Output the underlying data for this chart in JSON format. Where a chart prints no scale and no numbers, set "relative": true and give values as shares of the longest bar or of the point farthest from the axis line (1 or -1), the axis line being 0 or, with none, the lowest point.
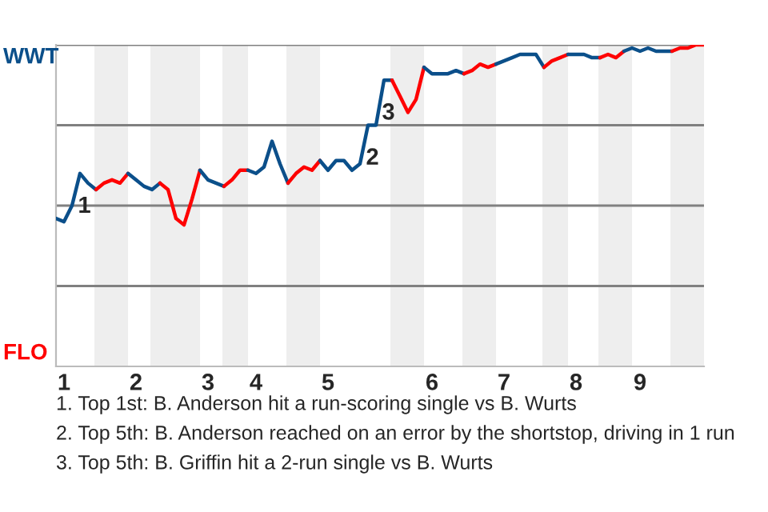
{
  "chart_data": {
    "type": "line",
    "relative": true,
    "grid": "y",
    "categories": [
      null,
      "1",
      null,
      null,
      null,
      null,
      null,
      null,
      null,
      null,
      "2",
      null,
      null,
      null,
      null,
      null,
      null,
      null,
      null,
      "3",
      null,
      null,
      null,
      null,
      null,
      "4",
      null,
      null,
      null,
      null,
      null,
      null,
      null,
      null,
      "5",
      null,
      null,
      null,
      null,
      null,
      null,
      null,
      null,
      null,
      null,
      null,
      null,
      "6",
      null,
      null,
      null,
      null,
      null,
      null,
      null,
      null,
      "7",
      null,
      null,
      null,
      null,
      null,
      null,
      null,
      null,
      "8",
      null,
      null,
      null,
      null,
      null,
      null,
      null,
      "9",
      null,
      null,
      null,
      null,
      null,
      null,
      null,
      null
    ],
    "series": [
      {
        "color": "#0b4f8a",
        "values": [
          0.46,
          0.45,
          0.5,
          0.6,
          0.57,
          0.55,
          null,
          null,
          null,
          null,
          null,
          null,
          null,
          null,
          null,
          null,
          null,
          null,
          null,
          null,
          null,
          null,
          null,
          null,
          null,
          null,
          null,
          null,
          null,
          null,
          null,
          null,
          null,
          null,
          null,
          null,
          null,
          null,
          null,
          null,
          null,
          null,
          null,
          null,
          null,
          null,
          null,
          null,
          null,
          null,
          null,
          null,
          null,
          null,
          null,
          null,
          null,
          null,
          null,
          null,
          null,
          null,
          null,
          null,
          null,
          null,
          null,
          null,
          null,
          null,
          null,
          null,
          null,
          null,
          null,
          null,
          null,
          null,
          null,
          null,
          null,
          null
        ]
      },
      {
        "color": "#ff0000",
        "values": [
          null,
          null,
          null,
          null,
          null,
          0.55,
          0.57,
          0.58,
          0.57,
          0.6,
          null,
          null,
          null,
          null,
          null,
          null,
          null,
          null,
          null,
          null,
          null,
          null,
          null,
          null,
          null,
          null,
          null,
          null,
          null,
          null,
          null,
          null,
          null,
          null,
          null,
          null,
          null,
          null,
          null,
          null,
          null,
          null,
          null,
          null,
          null,
          null,
          null,
          null,
          null,
          null,
          null,
          null,
          null,
          null,
          null,
          null,
          null,
          null,
          null,
          null,
          null,
          null,
          null,
          null,
          null,
          null,
          null,
          null,
          null,
          null,
          null,
          null,
          null,
          null,
          null,
          null,
          null,
          null,
          null,
          null,
          null,
          null
        ]
      },
      {
        "color": "#0b4f8b",
        "values": [
          null,
          null,
          null,
          null,
          null,
          null,
          null,
          null,
          null,
          0.6,
          0.58,
          0.56,
          0.55,
          0.57,
          null,
          null,
          null,
          null,
          null,
          null,
          null,
          null,
          null,
          null,
          null,
          null,
          null,
          null,
          null,
          null,
          null,
          null,
          null,
          null,
          null,
          null,
          null,
          null,
          null,
          null,
          null,
          null,
          null,
          null,
          null,
          null,
          null,
          null,
          null,
          null,
          null,
          null,
          null,
          null,
          null,
          null,
          null,
          null,
          null,
          null,
          null,
          null,
          null,
          null,
          null,
          null,
          null,
          null,
          null,
          null,
          null,
          null,
          null,
          null,
          null,
          null,
          null,
          null,
          null,
          null,
          null,
          null
        ]
      },
      {
        "color": "#fe0000",
        "values": [
          null,
          null,
          null,
          null,
          null,
          null,
          null,
          null,
          null,
          null,
          null,
          null,
          null,
          0.57,
          0.55,
          0.46,
          0.44,
          0.52,
          0.61,
          null,
          null,
          null,
          null,
          null,
          null,
          null,
          null,
          null,
          null,
          null,
          null,
          null,
          null,
          null,
          null,
          null,
          null,
          null,
          null,
          null,
          null,
          null,
          null,
          null,
          null,
          null,
          null,
          null,
          null,
          null,
          null,
          null,
          null,
          null,
          null,
          null,
          null,
          null,
          null,
          null,
          null,
          null,
          null,
          null,
          null,
          null,
          null,
          null,
          null,
          null,
          null,
          null,
          null,
          null,
          null,
          null,
          null,
          null,
          null,
          null,
          null,
          null
        ]
      },
      {
        "color": "#0b508a",
        "values": [
          null,
          null,
          null,
          null,
          null,
          null,
          null,
          null,
          null,
          null,
          null,
          null,
          null,
          null,
          null,
          null,
          null,
          null,
          0.61,
          0.58,
          0.57,
          0.56,
          null,
          null,
          null,
          null,
          null,
          null,
          null,
          null,
          null,
          null,
          null,
          null,
          null,
          null,
          null,
          null,
          null,
          null,
          null,
          null,
          null,
          null,
          null,
          null,
          null,
          null,
          null,
          null,
          null,
          null,
          null,
          null,
          null,
          null,
          null,
          null,
          null,
          null,
          null,
          null,
          null,
          null,
          null,
          null,
          null,
          null,
          null,
          null,
          null,
          null,
          null,
          null,
          null,
          null,
          null,
          null,
          null,
          null,
          null,
          null
        ]
      },
      {
        "color": "#ff0101",
        "values": [
          null,
          null,
          null,
          null,
          null,
          null,
          null,
          null,
          null,
          null,
          null,
          null,
          null,
          null,
          null,
          null,
          null,
          null,
          null,
          null,
          null,
          0.56,
          0.58,
          0.61,
          0.61,
          null,
          null,
          null,
          null,
          null,
          null,
          null,
          null,
          null,
          null,
          null,
          null,
          null,
          null,
          null,
          null,
          null,
          null,
          null,
          null,
          null,
          null,
          null,
          null,
          null,
          null,
          null,
          null,
          null,
          null,
          null,
          null,
          null,
          null,
          null,
          null,
          null,
          null,
          null,
          null,
          null,
          null,
          null,
          null,
          null,
          null,
          null,
          null,
          null,
          null,
          null,
          null,
          null,
          null,
          null,
          null,
          null
        ]
      },
      {
        "color": "#0c4f8a",
        "values": [
          null,
          null,
          null,
          null,
          null,
          null,
          null,
          null,
          null,
          null,
          null,
          null,
          null,
          null,
          null,
          null,
          null,
          null,
          null,
          null,
          null,
          null,
          null,
          null,
          0.61,
          0.6,
          0.62,
          0.7,
          0.63,
          0.57,
          null,
          null,
          null,
          null,
          null,
          null,
          null,
          null,
          null,
          null,
          null,
          null,
          null,
          null,
          null,
          null,
          null,
          null,
          null,
          null,
          null,
          null,
          null,
          null,
          null,
          null,
          null,
          null,
          null,
          null,
          null,
          null,
          null,
          null,
          null,
          null,
          null,
          null,
          null,
          null,
          null,
          null,
          null,
          null,
          null,
          null,
          null,
          null,
          null,
          null,
          null,
          null
        ]
      },
      {
        "color": "#fd0000",
        "values": [
          null,
          null,
          null,
          null,
          null,
          null,
          null,
          null,
          null,
          null,
          null,
          null,
          null,
          null,
          null,
          null,
          null,
          null,
          null,
          null,
          null,
          null,
          null,
          null,
          null,
          null,
          null,
          null,
          null,
          0.57,
          0.6,
          0.62,
          0.61,
          0.64,
          null,
          null,
          null,
          null,
          null,
          null,
          null,
          null,
          null,
          null,
          null,
          null,
          null,
          null,
          null,
          null,
          null,
          null,
          null,
          null,
          null,
          null,
          null,
          null,
          null,
          null,
          null,
          null,
          null,
          null,
          null,
          null,
          null,
          null,
          null,
          null,
          null,
          null,
          null,
          null,
          null,
          null,
          null,
          null,
          null,
          null,
          null,
          null
        ]
      },
      {
        "color": "#0a4f8a",
        "values": [
          null,
          null,
          null,
          null,
          null,
          null,
          null,
          null,
          null,
          null,
          null,
          null,
          null,
          null,
          null,
          null,
          null,
          null,
          null,
          null,
          null,
          null,
          null,
          null,
          null,
          null,
          null,
          null,
          null,
          null,
          null,
          null,
          null,
          0.64,
          0.61,
          0.64,
          0.64,
          0.61,
          0.63,
          0.75,
          0.75,
          0.89,
          0.89,
          null,
          null,
          null,
          null,
          null,
          null,
          null,
          null,
          null,
          null,
          null,
          null,
          null,
          null,
          null,
          null,
          null,
          null,
          null,
          null,
          null,
          null,
          null,
          null,
          null,
          null,
          null,
          null,
          null,
          null,
          null,
          null,
          null,
          null,
          null,
          null,
          null,
          null,
          null
        ]
      },
      {
        "color": "#ff0202",
        "values": [
          null,
          null,
          null,
          null,
          null,
          null,
          null,
          null,
          null,
          null,
          null,
          null,
          null,
          null,
          null,
          null,
          null,
          null,
          null,
          null,
          null,
          null,
          null,
          null,
          null,
          null,
          null,
          null,
          null,
          null,
          null,
          null,
          null,
          null,
          null,
          null,
          null,
          null,
          null,
          null,
          null,
          null,
          0.89,
          0.84,
          0.79,
          0.83,
          0.93,
          null,
          null,
          null,
          null,
          null,
          null,
          null,
          null,
          null,
          null,
          null,
          null,
          null,
          null,
          null,
          null,
          null,
          null,
          null,
          null,
          null,
          null,
          null,
          null,
          null,
          null,
          null,
          null,
          null,
          null,
          null,
          null,
          null,
          null,
          null
        ]
      },
      {
        "color": "#0b4e8a",
        "values": [
          null,
          null,
          null,
          null,
          null,
          null,
          null,
          null,
          null,
          null,
          null,
          null,
          null,
          null,
          null,
          null,
          null,
          null,
          null,
          null,
          null,
          null,
          null,
          null,
          null,
          null,
          null,
          null,
          null,
          null,
          null,
          null,
          null,
          null,
          null,
          null,
          null,
          null,
          null,
          null,
          null,
          null,
          null,
          null,
          null,
          null,
          0.93,
          0.91,
          0.91,
          0.91,
          0.92,
          0.91,
          null,
          null,
          null,
          null,
          null,
          null,
          null,
          null,
          null,
          null,
          null,
          null,
          null,
          null,
          null,
          null,
          null,
          null,
          null,
          null,
          null,
          null,
          null,
          null,
          null,
          null,
          null,
          null,
          null,
          null
        ]
      },
      {
        "color": "#fe0101",
        "values": [
          null,
          null,
          null,
          null,
          null,
          null,
          null,
          null,
          null,
          null,
          null,
          null,
          null,
          null,
          null,
          null,
          null,
          null,
          null,
          null,
          null,
          null,
          null,
          null,
          null,
          null,
          null,
          null,
          null,
          null,
          null,
          null,
          null,
          null,
          null,
          null,
          null,
          null,
          null,
          null,
          null,
          null,
          null,
          null,
          null,
          null,
          null,
          null,
          null,
          null,
          null,
          0.91,
          0.92,
          0.94,
          0.93,
          0.94,
          null,
          null,
          null,
          null,
          null,
          null,
          null,
          null,
          null,
          null,
          null,
          null,
          null,
          null,
          null,
          null,
          null,
          null,
          null,
          null,
          null,
          null,
          null,
          null,
          null,
          null
        ]
      },
      {
        "color": "#0b4f89",
        "values": [
          null,
          null,
          null,
          null,
          null,
          null,
          null,
          null,
          null,
          null,
          null,
          null,
          null,
          null,
          null,
          null,
          null,
          null,
          null,
          null,
          null,
          null,
          null,
          null,
          null,
          null,
          null,
          null,
          null,
          null,
          null,
          null,
          null,
          null,
          null,
          null,
          null,
          null,
          null,
          null,
          null,
          null,
          null,
          null,
          null,
          null,
          null,
          null,
          null,
          null,
          null,
          null,
          null,
          null,
          null,
          0.94,
          0.95,
          0.96,
          0.97,
          0.97,
          0.97,
          0.93,
          null,
          null,
          null,
          null,
          null,
          null,
          null,
          null,
          null,
          null,
          null,
          null,
          null,
          null,
          null,
          null,
          null,
          null,
          null,
          null
        ]
      },
      {
        "color": "#fc0000",
        "values": [
          null,
          null,
          null,
          null,
          null,
          null,
          null,
          null,
          null,
          null,
          null,
          null,
          null,
          null,
          null,
          null,
          null,
          null,
          null,
          null,
          null,
          null,
          null,
          null,
          null,
          null,
          null,
          null,
          null,
          null,
          null,
          null,
          null,
          null,
          null,
          null,
          null,
          null,
          null,
          null,
          null,
          null,
          null,
          null,
          null,
          null,
          null,
          null,
          null,
          null,
          null,
          null,
          null,
          null,
          null,
          null,
          null,
          null,
          null,
          null,
          null,
          0.93,
          0.95,
          0.96,
          0.97,
          null,
          null,
          null,
          null,
          null,
          null,
          null,
          null,
          null,
          null,
          null,
          null,
          null,
          null,
          null,
          null,
          null
        ]
      },
      {
        "color": "#0b508b",
        "values": [
          null,
          null,
          null,
          null,
          null,
          null,
          null,
          null,
          null,
          null,
          null,
          null,
          null,
          null,
          null,
          null,
          null,
          null,
          null,
          null,
          null,
          null,
          null,
          null,
          null,
          null,
          null,
          null,
          null,
          null,
          null,
          null,
          null,
          null,
          null,
          null,
          null,
          null,
          null,
          null,
          null,
          null,
          null,
          null,
          null,
          null,
          null,
          null,
          null,
          null,
          null,
          null,
          null,
          null,
          null,
          null,
          null,
          null,
          null,
          null,
          null,
          null,
          null,
          null,
          0.97,
          0.97,
          0.97,
          0.96,
          0.96,
          null,
          null,
          null,
          null,
          null,
          null,
          null,
          null,
          null,
          null,
          null,
          null,
          null
        ]
      },
      {
        "color": "#ff0303",
        "values": [
          null,
          null,
          null,
          null,
          null,
          null,
          null,
          null,
          null,
          null,
          null,
          null,
          null,
          null,
          null,
          null,
          null,
          null,
          null,
          null,
          null,
          null,
          null,
          null,
          null,
          null,
          null,
          null,
          null,
          null,
          null,
          null,
          null,
          null,
          null,
          null,
          null,
          null,
          null,
          null,
          null,
          null,
          null,
          null,
          null,
          null,
          null,
          null,
          null,
          null,
          null,
          null,
          null,
          null,
          null,
          null,
          null,
          null,
          null,
          null,
          null,
          null,
          null,
          null,
          null,
          null,
          null,
          null,
          0.96,
          0.97,
          0.96,
          0.98,
          null,
          null,
          null,
          null,
          null,
          null,
          null,
          null,
          null,
          null
        ]
      },
      {
        "color": "#0c508a",
        "values": [
          null,
          null,
          null,
          null,
          null,
          null,
          null,
          null,
          null,
          null,
          null,
          null,
          null,
          null,
          null,
          null,
          null,
          null,
          null,
          null,
          null,
          null,
          null,
          null,
          null,
          null,
          null,
          null,
          null,
          null,
          null,
          null,
          null,
          null,
          null,
          null,
          null,
          null,
          null,
          null,
          null,
          null,
          null,
          null,
          null,
          null,
          null,
          null,
          null,
          null,
          null,
          null,
          null,
          null,
          null,
          null,
          null,
          null,
          null,
          null,
          null,
          null,
          null,
          null,
          null,
          null,
          null,
          null,
          null,
          null,
          null,
          0.98,
          0.99,
          0.98,
          0.99,
          0.98,
          0.98,
          0.98,
          null,
          null,
          null,
          null
        ]
      },
      {
        "color": "#fd0101",
        "values": [
          null,
          null,
          null,
          null,
          null,
          null,
          null,
          null,
          null,
          null,
          null,
          null,
          null,
          null,
          null,
          null,
          null,
          null,
          null,
          null,
          null,
          null,
          null,
          null,
          null,
          null,
          null,
          null,
          null,
          null,
          null,
          null,
          null,
          null,
          null,
          null,
          null,
          null,
          null,
          null,
          null,
          null,
          null,
          null,
          null,
          null,
          null,
          null,
          null,
          null,
          null,
          null,
          null,
          null,
          null,
          null,
          null,
          null,
          null,
          null,
          null,
          null,
          null,
          null,
          null,
          null,
          null,
          null,
          null,
          null,
          null,
          null,
          null,
          null,
          null,
          null,
          null,
          0.98,
          0.99,
          0.99,
          1.0,
          1.0
        ]
      }
    ],
    "annotations": [
      {
        "text": "1",
        "y": 0.6
      },
      {
        "text": "2",
        "y": 0.75
      },
      {
        "text": "3",
        "y": 0.89
      },
      "WWT",
      "FLO",
      "1. Top 1st: B. Anderson hit a run-scoring single vs B. Wurts",
      "2. Top 5th: B. Anderson reached on an error by the shortstop, driving in 1 run",
      "3. Top 5th: B. Griffin hit a 2-run single vs B. Wurts"
    ]
  }
}
